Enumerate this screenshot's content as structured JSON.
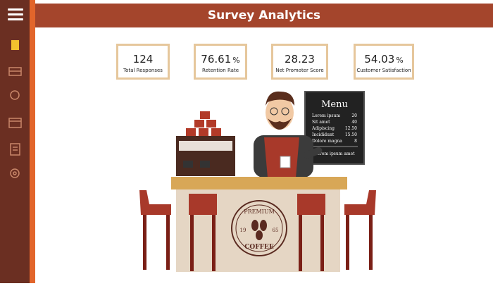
{
  "header": {
    "title": "Survey Analytics"
  },
  "cards": [
    {
      "value": "124",
      "unit": "",
      "label": "Total Responses"
    },
    {
      "value": "76.61",
      "unit": "%",
      "label": "Retention Rate"
    },
    {
      "value": "28.23",
      "unit": "",
      "label": "Net Promoter Score"
    },
    {
      "value": "54.03",
      "unit": "%",
      "label": "Customer Satisfaction"
    }
  ],
  "menu": {
    "title": "Menu",
    "items": [
      {
        "name": "Lorem ipsum",
        "price": "20"
      },
      {
        "name": "Sit amet",
        "price": "40"
      },
      {
        "name": "Adipiscing",
        "price": "12.50"
      },
      {
        "name": "Incididunt",
        "price": "15.50"
      },
      {
        "name": "Dolore magna",
        "price": "8"
      }
    ],
    "footer": "Lorem ipsum amet"
  },
  "logo": {
    "top": "PREMIUM",
    "left": "19",
    "right": "65",
    "bottom": "COFFEE"
  }
}
